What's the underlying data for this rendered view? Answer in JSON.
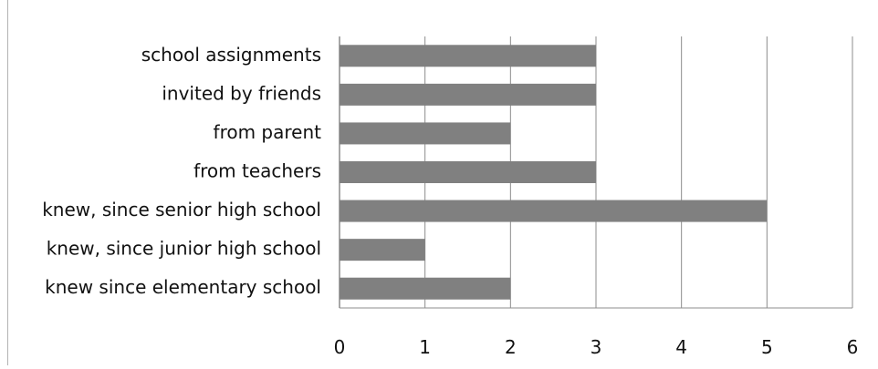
{
  "chart_data": {
    "type": "bar",
    "orientation": "horizontal",
    "categories": [
      "school assignments",
      "invited by friends",
      "from parent",
      "from teachers",
      "knew, since senior high school",
      "knew, since junior high school",
      "knew since elementary school"
    ],
    "values": [
      3,
      3,
      2,
      3,
      5,
      1,
      2
    ],
    "title": "",
    "xlabel": "",
    "ylabel": "",
    "xlim": [
      0,
      6
    ],
    "x_ticks": [
      0,
      1,
      2,
      3,
      4,
      5,
      6
    ],
    "grid": "vertical",
    "legend": "none",
    "colors": {
      "bar": "#808080",
      "grid": "#8c8c8c",
      "text": "#111111"
    }
  }
}
